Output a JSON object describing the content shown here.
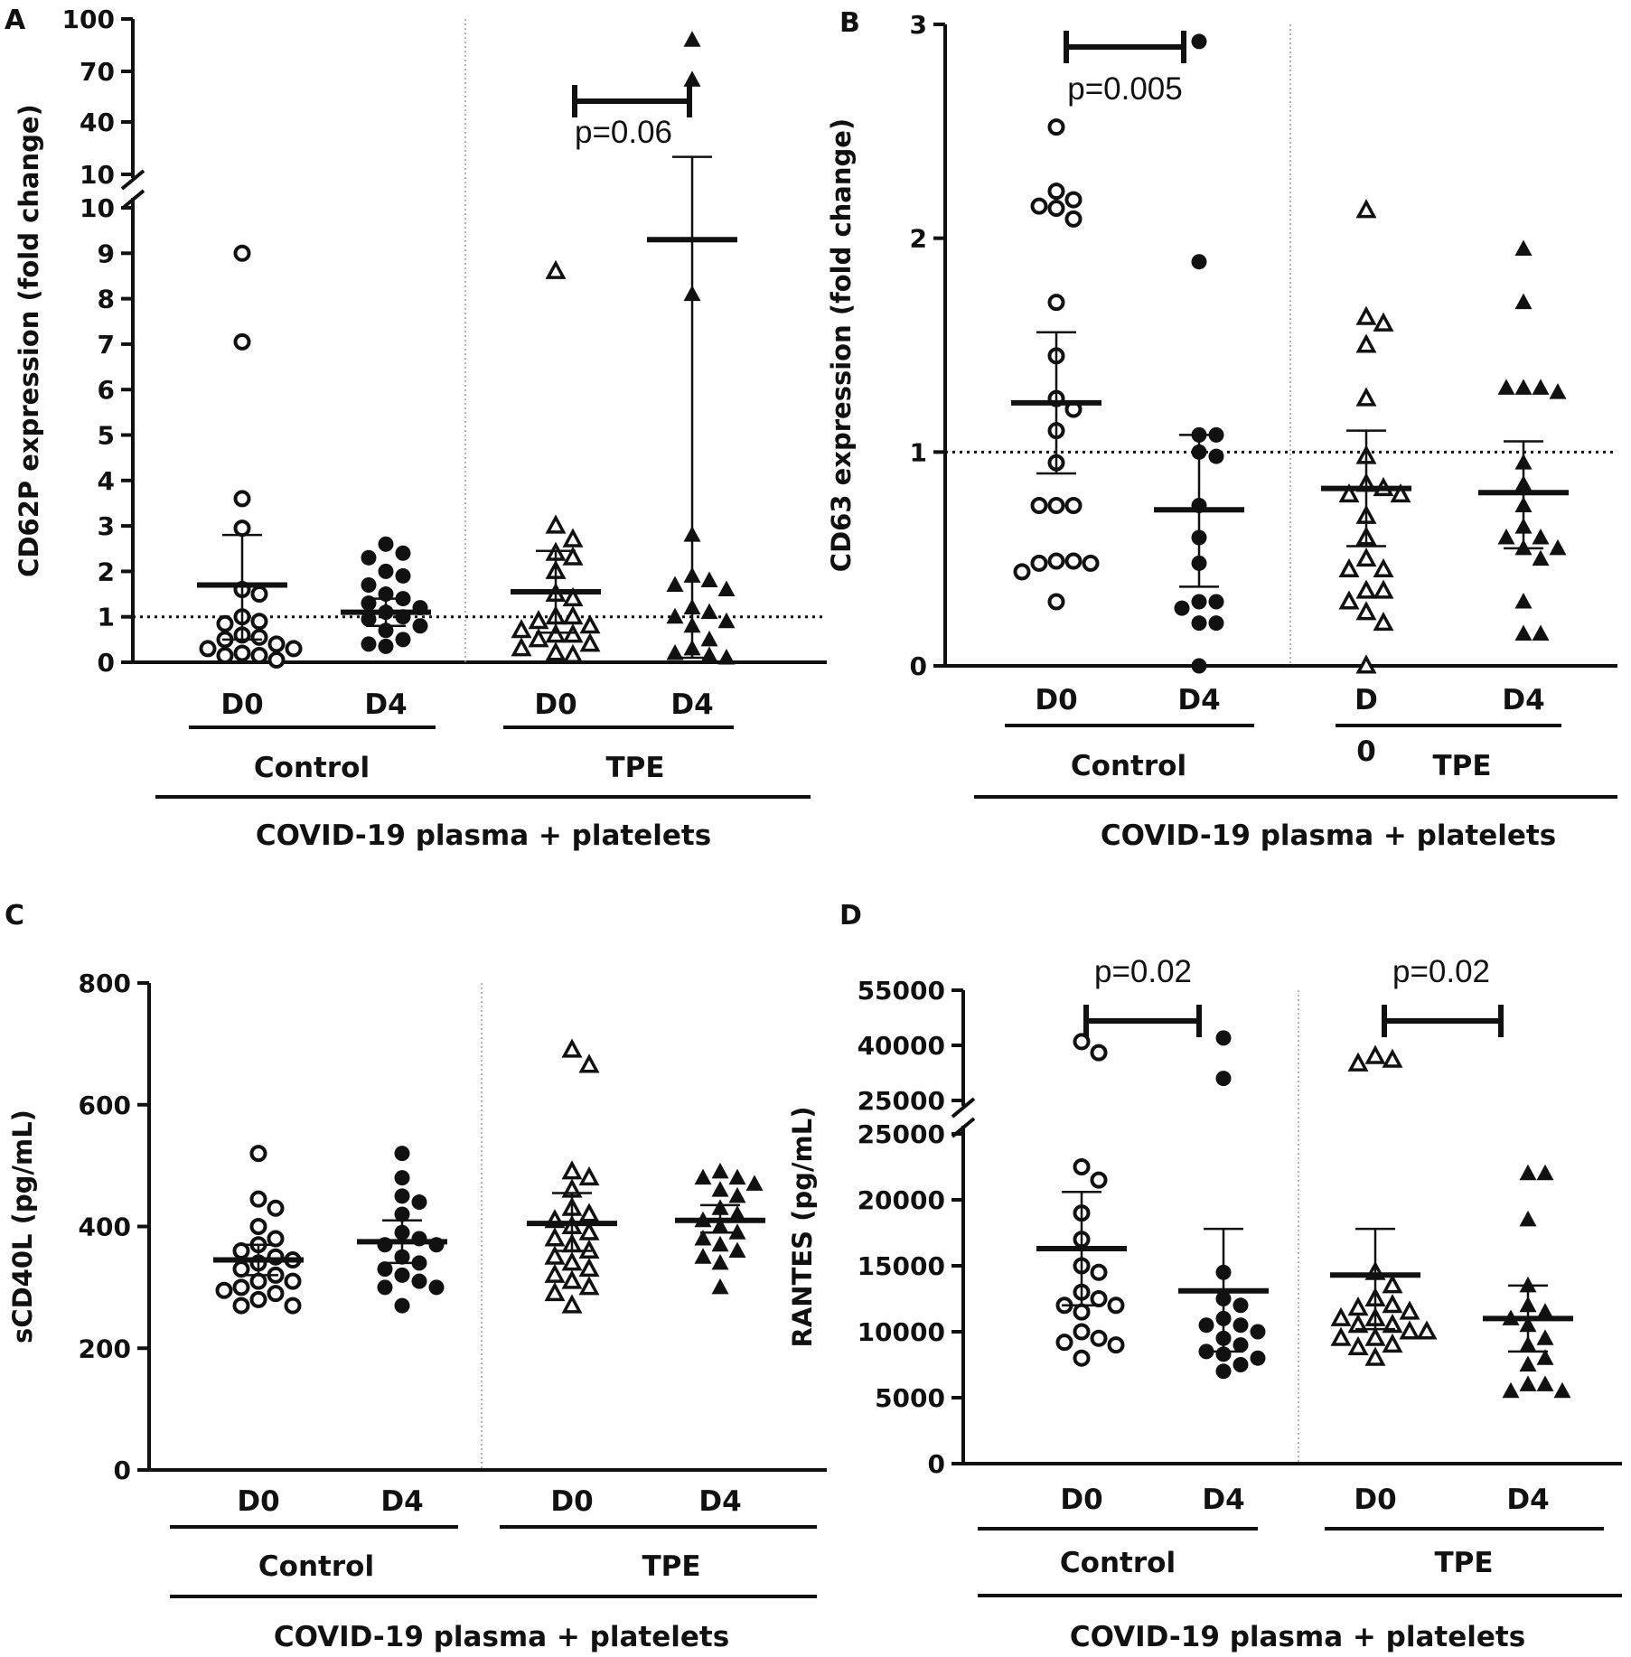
{
  "chart_data": [
    {
      "panel": "A",
      "type": "scatter",
      "ylabel": "CD62P expression (fold change)",
      "axis_break": true,
      "yticks_lower": [
        "0",
        "1",
        "2",
        "3",
        "4",
        "5",
        "6",
        "7",
        "8",
        "9",
        "10"
      ],
      "yticks_upper": [
        "10",
        "40",
        "70",
        "100"
      ],
      "ylim_lower": [
        0,
        10
      ],
      "ylim_upper": [
        10,
        100
      ],
      "reference_line": 1,
      "categories": [
        "D0",
        "D4",
        "D0",
        "D4"
      ],
      "groups": [
        "Control",
        "TPE"
      ],
      "overall": "COVID-19 plasma + platelets",
      "series": [
        {
          "category": "D0",
          "group": "Control",
          "marker": "circle-open",
          "values": [
            9.0,
            7.05,
            3.6,
            2.95,
            1.6,
            1.5,
            1.0,
            0.9,
            0.85,
            0.6,
            0.55,
            0.5,
            0.4,
            0.3,
            0.3,
            0.2,
            0.15,
            0.15,
            0.05
          ],
          "mean": 1.7,
          "ci": [
            0.5,
            2.8
          ]
        },
        {
          "category": "D4",
          "group": "Control",
          "marker": "circle-filled",
          "values": [
            2.6,
            2.4,
            2.3,
            2.0,
            1.9,
            1.7,
            1.5,
            1.4,
            1.3,
            1.2,
            1.1,
            1.0,
            0.95,
            0.8,
            0.7,
            0.5,
            0.4,
            0.35
          ],
          "mean": 1.1,
          "ci": [
            0.8,
            1.4
          ]
        },
        {
          "category": "D0",
          "group": "TPE",
          "marker": "triangle-open",
          "values": [
            8.6,
            3.0,
            2.7,
            2.4,
            2.3,
            2.0,
            1.5,
            1.4,
            1.0,
            1.0,
            0.9,
            0.8,
            0.7,
            0.6,
            0.6,
            0.5,
            0.4,
            0.3,
            0.2,
            0.15
          ],
          "mean": 1.55,
          "ci": [
            0.65,
            2.45
          ]
        },
        {
          "category": "D4",
          "group": "TPE",
          "marker": "triangle-filled",
          "values": [
            88,
            65,
            8.1,
            2.8,
            1.9,
            1.8,
            1.7,
            1.6,
            1.2,
            1.1,
            1.0,
            0.9,
            0.8,
            0.5,
            0.3,
            0.2,
            0.15,
            0.1
          ],
          "mean": 9.3,
          "ci": [
            0.1,
            20
          ]
        }
      ],
      "annotations": [
        {
          "text": "p=0.06",
          "from": 3,
          "to": 3
        }
      ]
    },
    {
      "panel": "B",
      "type": "scatter",
      "ylabel": "CD63 expression (fold change)",
      "yticks": [
        "0",
        "1",
        "2",
        "3"
      ],
      "ylim": [
        0,
        3
      ],
      "reference_line": 1,
      "categories": [
        "D0",
        "D4",
        "D\n0",
        "D4"
      ],
      "groups": [
        "Control",
        "TPE"
      ],
      "overall": "COVID-19 plasma + platelets",
      "series": [
        {
          "category": "D0",
          "group": "Control",
          "marker": "circle-open",
          "values": [
            2.52,
            2.22,
            2.18,
            2.15,
            2.14,
            2.09,
            1.7,
            1.45,
            1.25,
            1.2,
            1.1,
            0.95,
            0.75,
            0.75,
            0.75,
            0.49,
            0.49,
            0.48,
            0.48,
            0.44,
            0.3
          ],
          "mean": 1.23,
          "ci": [
            0.9,
            1.56
          ]
        },
        {
          "category": "D4",
          "group": "Control",
          "marker": "circle-filled",
          "values": [
            2.92,
            1.89,
            1.08,
            1.08,
            1.0,
            0.98,
            0.75,
            0.6,
            0.48,
            0.3,
            0.3,
            0.27,
            0.2,
            0.2,
            0.0
          ],
          "mean": 0.73,
          "ci": [
            0.37,
            1.08
          ]
        },
        {
          "category": "D\n0",
          "group": "TPE",
          "marker": "triangle-open",
          "values": [
            2.13,
            1.63,
            1.6,
            1.5,
            1.25,
            0.98,
            0.85,
            0.83,
            0.8,
            0.8,
            0.7,
            0.6,
            0.5,
            0.45,
            0.45,
            0.35,
            0.35,
            0.3,
            0.25,
            0.2,
            0.0
          ],
          "mean": 0.83,
          "ci": [
            0.56,
            1.1
          ]
        },
        {
          "category": "D4",
          "group": "TPE",
          "marker": "triangle-filled",
          "values": [
            1.95,
            1.7,
            1.3,
            1.3,
            1.3,
            1.28,
            0.95,
            0.85,
            0.75,
            0.65,
            0.6,
            0.6,
            0.55,
            0.55,
            0.5,
            0.3,
            0.15,
            0.15
          ],
          "mean": 0.81,
          "ci": [
            0.55,
            1.05
          ]
        }
      ],
      "annotations": [
        {
          "text": "p=0.005",
          "from": 0,
          "to": 1
        }
      ]
    },
    {
      "panel": "C",
      "type": "scatter",
      "ylabel": "sCD40L (pg/mL)",
      "yticks": [
        "0",
        "200",
        "400",
        "600",
        "800"
      ],
      "ylim": [
        0,
        800
      ],
      "categories": [
        "D0",
        "D4",
        "D0",
        "D4"
      ],
      "groups": [
        "Control",
        "TPE"
      ],
      "overall": "COVID-19 plasma + platelets",
      "series": [
        {
          "category": "D0",
          "group": "Control",
          "marker": "circle-open",
          "values": [
            520,
            445,
            430,
            400,
            380,
            370,
            360,
            350,
            345,
            340,
            330,
            320,
            310,
            310,
            300,
            295,
            290,
            280,
            270,
            270
          ],
          "mean": 345,
          "ci": [
            320,
            370
          ]
        },
        {
          "category": "D4",
          "group": "Control",
          "marker": "circle-filled",
          "values": [
            520,
            480,
            450,
            440,
            420,
            390,
            380,
            370,
            370,
            350,
            340,
            330,
            320,
            310,
            300,
            300,
            270
          ],
          "mean": 375,
          "ci": [
            340,
            410
          ]
        },
        {
          "category": "D0",
          "group": "TPE",
          "marker": "triangle-open",
          "values": [
            690,
            665,
            490,
            480,
            460,
            430,
            420,
            410,
            400,
            390,
            380,
            370,
            360,
            350,
            340,
            330,
            320,
            310,
            300,
            290,
            270
          ],
          "mean": 405,
          "ci": [
            360,
            455
          ]
        },
        {
          "category": "D4",
          "group": "TPE",
          "marker": "triangle-filled",
          "values": [
            490,
            480,
            480,
            470,
            460,
            450,
            430,
            420,
            410,
            400,
            390,
            380,
            370,
            360,
            350,
            340,
            300
          ],
          "mean": 410,
          "ci": [
            390,
            435
          ]
        }
      ]
    },
    {
      "panel": "D",
      "type": "scatter",
      "ylabel": "RANTES (pg/mL)",
      "axis_break": true,
      "yticks_lower": [
        "0",
        "5000",
        "10000",
        "15000",
        "20000",
        "25000"
      ],
      "yticks_upper": [
        "25000",
        "40000",
        "55000"
      ],
      "ylim_lower": [
        0,
        25000
      ],
      "ylim_upper": [
        25000,
        55000
      ],
      "categories": [
        "D0",
        "D4",
        "D0",
        "D4"
      ],
      "groups": [
        "Control",
        "TPE"
      ],
      "overall": "COVID-19 plasma + platelets",
      "series": [
        {
          "category": "D0",
          "group": "Control",
          "marker": "circle-open",
          "values": [
            41000,
            38000,
            22500,
            21500,
            19000,
            17000,
            15000,
            14500,
            13000,
            12500,
            12000,
            12000,
            11500,
            10000,
            9500,
            9200,
            9000,
            8000
          ],
          "mean": 16300,
          "ci": [
            12000,
            20600
          ]
        },
        {
          "category": "D4",
          "group": "Control",
          "marker": "circle-filled",
          "values": [
            42000,
            31000,
            14500,
            12500,
            12000,
            11000,
            10500,
            10500,
            10000,
            9500,
            9000,
            8500,
            8300,
            8000,
            7500,
            7000
          ],
          "mean": 13100,
          "ci": [
            8500,
            17800
          ]
        },
        {
          "category": "D0",
          "group": "TPE",
          "marker": "triangle-open",
          "values": [
            37000,
            36000,
            35000,
            14500,
            13500,
            12500,
            12000,
            11800,
            11500,
            11000,
            11000,
            10500,
            10500,
            10000,
            10000,
            9500,
            9500,
            9000,
            8800,
            8000
          ],
          "mean": 14300,
          "ci": [
            10200,
            17800
          ]
        },
        {
          "category": "D4",
          "group": "TPE",
          "marker": "triangle-filled",
          "values": [
            22000,
            22000,
            18500,
            13500,
            12000,
            11500,
            11000,
            10500,
            9500,
            9000,
            8000,
            7500,
            6000,
            6000,
            5500,
            5500
          ],
          "mean": 11000,
          "ci": [
            8500,
            13500
          ]
        }
      ],
      "annotations": [
        {
          "text": "p=0.02",
          "from": 0,
          "to": 1
        },
        {
          "text": "p=0.02",
          "from": 2,
          "to": 3
        }
      ]
    }
  ]
}
